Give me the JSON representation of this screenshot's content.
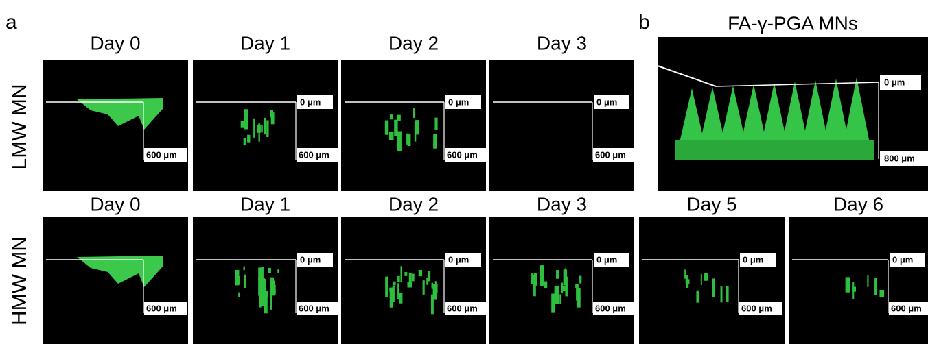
{
  "panel_a": {
    "label": "a",
    "rows": [
      {
        "label": "LMW MN",
        "images": [
          {
            "title": "Day 0",
            "scale": {
              "bottom": "600 μm"
            }
          },
          {
            "title": "Day 1",
            "scale": {
              "top": "0 μm",
              "bottom": "600 μm"
            }
          },
          {
            "title": "Day 2",
            "scale": {
              "top": "0 μm",
              "bottom": "600 μm"
            }
          },
          {
            "title": "Day 3",
            "scale": {
              "top": "0 μm",
              "bottom": "600 μm"
            }
          }
        ]
      },
      {
        "label": "HMW MN",
        "images": [
          {
            "title": "Day 0",
            "scale": {
              "bottom": "600 μm"
            }
          },
          {
            "title": "Day 1",
            "scale": {
              "top": "0 μm",
              "bottom": "600 μm"
            }
          },
          {
            "title": "Day 2",
            "scale": {
              "top": "0 μm",
              "bottom": "600 μm"
            }
          },
          {
            "title": "Day 3",
            "scale": {
              "top": "0 μm",
              "bottom": "600 μm"
            }
          }
        ]
      }
    ]
  },
  "panel_b": {
    "label": "b",
    "title": "FA-γ-PGA MNs",
    "main_image": {
      "scale": {
        "top": "0 μm",
        "bottom": "800 μm"
      }
    },
    "images": [
      {
        "title": "Day 5",
        "scale": {
          "top": "0 μm",
          "bottom": "600 μm"
        }
      },
      {
        "title": "Day 6",
        "scale": {
          "top": "0 μm",
          "bottom": "600 μm"
        }
      }
    ]
  }
}
